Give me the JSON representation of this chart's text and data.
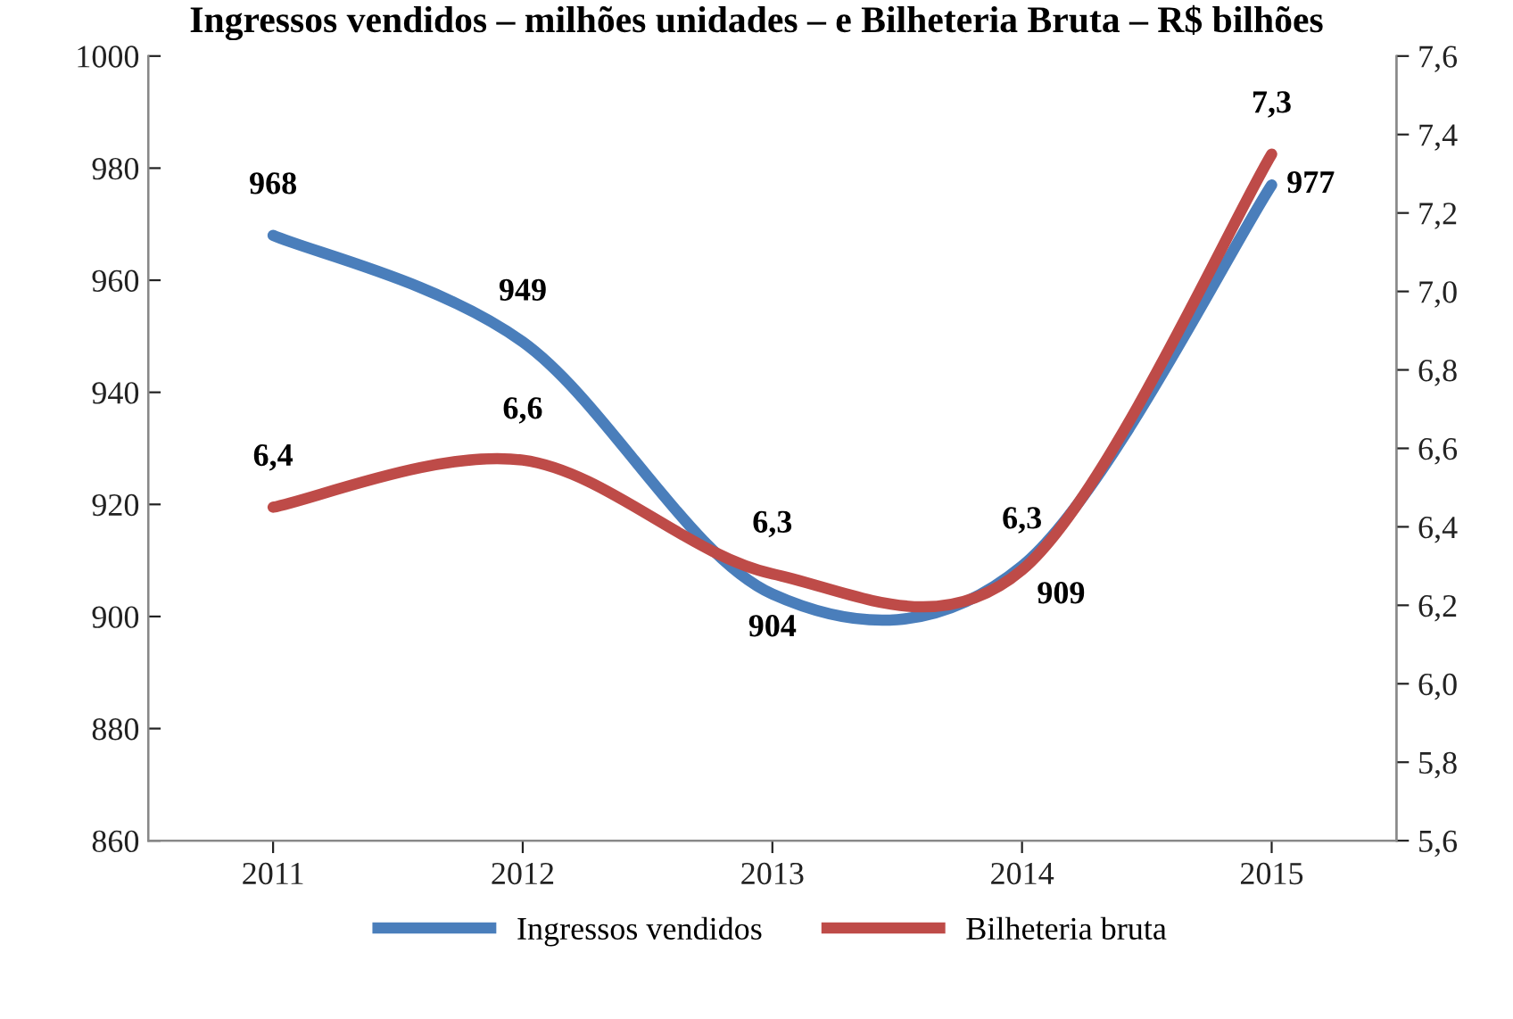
{
  "chart_data": {
    "type": "line",
    "title": "Ingressos vendidos – milhões unidades – e Bilheteria Bruta – R$ bilhões",
    "categories": [
      "2011",
      "2012",
      "2013",
      "2014",
      "2015"
    ],
    "series": [
      {
        "name": "Ingressos vendidos",
        "color": "#4a7ebb",
        "values": [
          968,
          949,
          904,
          909,
          977
        ],
        "value_labels": [
          "968",
          "949",
          "904",
          "909",
          "977"
        ]
      },
      {
        "name": "Bilheteria bruta",
        "color": "#be4b48",
        "axis": "y2",
        "values": [
          6.45,
          6.57,
          6.28,
          6.29,
          7.35
        ],
        "value_labels": [
          "6,4",
          "6,6",
          "6,3",
          "6,3",
          "7,3"
        ]
      }
    ],
    "ylim": [
      860,
      1000
    ],
    "yticks": [
      860,
      880,
      900,
      920,
      940,
      960,
      980,
      1000
    ],
    "y2lim": [
      5.6,
      7.6
    ],
    "y2ticks": [
      {
        "value": 5.6,
        "label": "5,6"
      },
      {
        "value": 5.8,
        "label": "5,8"
      },
      {
        "value": 6.0,
        "label": "6,0"
      },
      {
        "value": 6.2,
        "label": "6,2"
      },
      {
        "value": 6.4,
        "label": "6,4"
      },
      {
        "value": 6.6,
        "label": "6,6"
      },
      {
        "value": 6.8,
        "label": "6,8"
      },
      {
        "value": 7.0,
        "label": "7,0"
      },
      {
        "value": 7.2,
        "label": "7,2"
      },
      {
        "value": 7.4,
        "label": "7,4"
      },
      {
        "value": 7.6,
        "label": "7,6"
      }
    ],
    "legend": "bottom",
    "grid": false,
    "marker": "none",
    "line_style": "solid"
  }
}
